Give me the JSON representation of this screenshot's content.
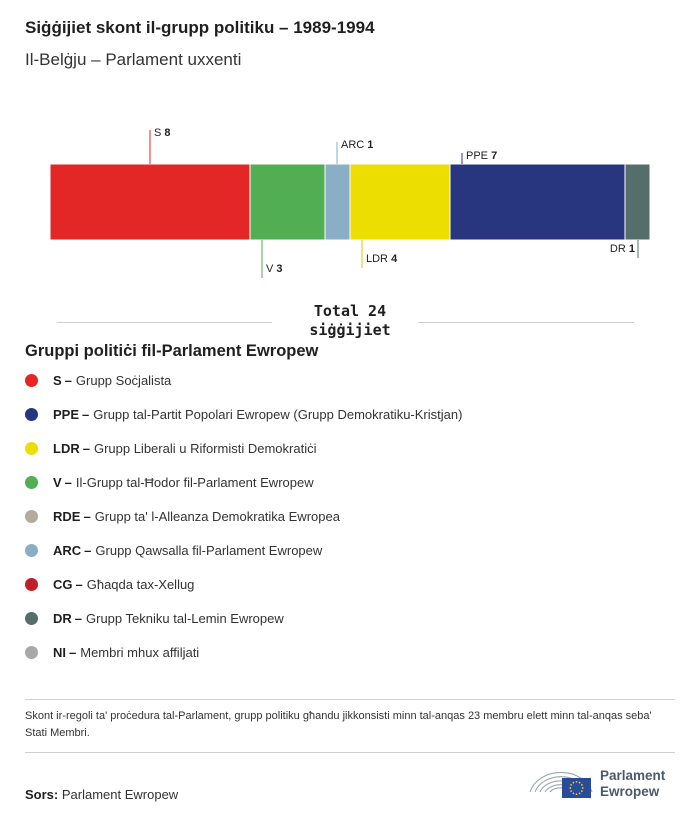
{
  "title": "Siġġijiet skont il-grupp politiku – 1989-1994",
  "subtitle": "Il-Belġju – Parlament uxxenti",
  "total": {
    "line1": "Total 24",
    "line2": "siġġijiet"
  },
  "colors": {
    "S": "#e32626",
    "V": "#52ae52",
    "ARC": "#8aaec6",
    "LDR": "#ecdf00",
    "PPE": "#283680",
    "DR": "#566e6a"
  },
  "chart_data": {
    "type": "bar",
    "orientation": "horizontal-stacked",
    "total": 24,
    "segments": [
      {
        "abbr": "S",
        "value": 8,
        "color": "#e32626",
        "label_side": "top"
      },
      {
        "abbr": "V",
        "value": 3,
        "color": "#52ae52",
        "label_side": "bottom"
      },
      {
        "abbr": "ARC",
        "value": 1,
        "color": "#8aaec6",
        "label_side": "top"
      },
      {
        "abbr": "LDR",
        "value": 4,
        "color": "#ecdf00",
        "label_side": "bottom"
      },
      {
        "abbr": "PPE",
        "value": 7,
        "color": "#283680",
        "label_side": "top"
      },
      {
        "abbr": "DR",
        "value": 1,
        "color": "#566e6a",
        "label_side": "bottom"
      }
    ]
  },
  "legend": {
    "title": "Gruppi politiċi fil-Parlament Ewropew",
    "items": [
      {
        "abbr": "S",
        "sep": "–",
        "name": "Grupp Soċjalista",
        "color": "#e32626"
      },
      {
        "abbr": "PPE",
        "sep": "–",
        "name": "Grupp tal-Partit Popolari Ewropew (Grupp Demokratiku-Kristjan)",
        "color": "#283680"
      },
      {
        "abbr": "LDR",
        "sep": "–",
        "name": "Grupp Liberali u Riformisti Demokratiċi",
        "color": "#ecdf00"
      },
      {
        "abbr": "V",
        "sep": "–",
        "name": "Il-Grupp tal-Ħodor fil-Parlament Ewropew",
        "color": "#52ae52"
      },
      {
        "abbr": "RDE",
        "sep": "–",
        "name": "Grupp ta' l-Alleanza Demokratika Ewropea",
        "color": "#b5ab9c"
      },
      {
        "abbr": "ARC",
        "sep": "–",
        "name": "Grupp Qawsalla fil-Parlament Ewropew",
        "color": "#8aaec6"
      },
      {
        "abbr": "CG",
        "sep": "–",
        "name": "Għaqda tax-Xellug",
        "color": "#c01f28"
      },
      {
        "abbr": "DR",
        "sep": "–",
        "name": "Grupp Tekniku tal-Lemin Ewropew",
        "color": "#566e6a"
      },
      {
        "abbr": "NI",
        "sep": "–",
        "name": "Membri mhux affiljati",
        "color": "#a8a8a8"
      }
    ]
  },
  "note": "Skont ir-regoli ta' proċedura tal-Parlament, grupp politiku għandu jikkonsisti minn tal-anqas 23 membru elett minn tal-anqas seba' Stati Membri.",
  "source": {
    "label": "Sors:",
    "text": "Parlament Ewropew"
  },
  "logo": {
    "line1": "Parlament",
    "line2": "Ewropew",
    "flag_color": "#2a4a9a",
    "star_color": "#ffd617"
  }
}
